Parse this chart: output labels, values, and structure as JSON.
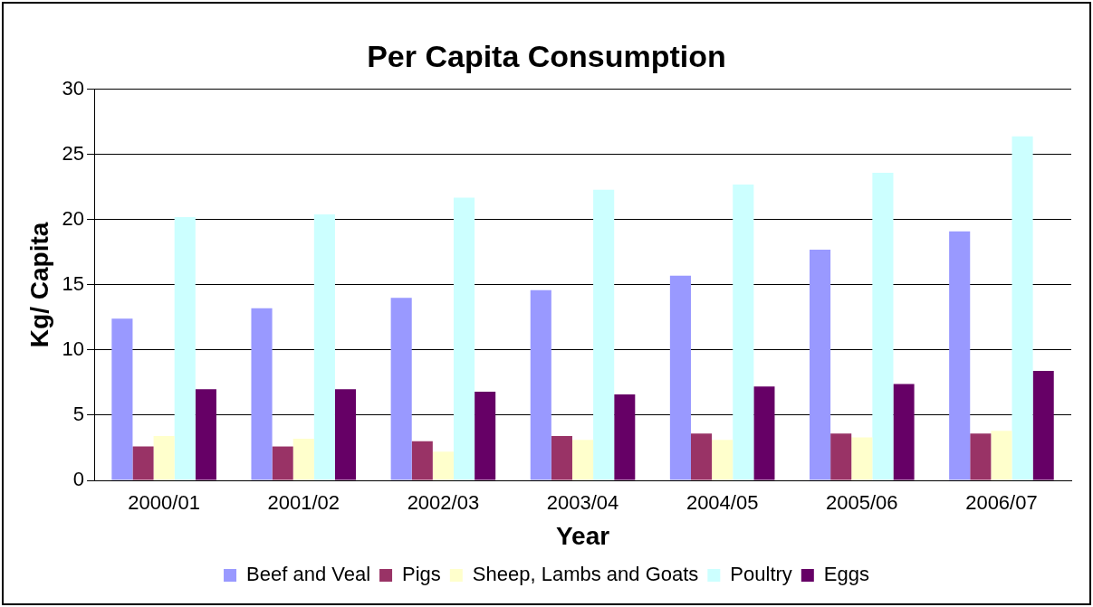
{
  "chart_data": {
    "type": "bar",
    "title": "Per Capita Consumption",
    "xlabel": "Year",
    "ylabel": "Kg/ Capita",
    "categories": [
      "2000/01",
      "2001/02",
      "2002/03",
      "2003/04",
      "2004/05",
      "2005/06",
      "2006/07"
    ],
    "series": [
      {
        "name": "Beef and Veal",
        "color": "#9999ff",
        "values": [
          12.4,
          13.2,
          14.0,
          14.6,
          15.7,
          17.7,
          19.1
        ]
      },
      {
        "name": "Pigs",
        "color": "#993366",
        "values": [
          2.6,
          2.6,
          3.0,
          3.4,
          3.6,
          3.6,
          3.6
        ]
      },
      {
        "name": "Sheep, Lambs and Goats",
        "color": "#ffffcc",
        "values": [
          3.4,
          3.2,
          2.2,
          3.1,
          3.1,
          3.3,
          3.8
        ]
      },
      {
        "name": "Poultry",
        "color": "#ccffff",
        "values": [
          20.2,
          20.4,
          21.7,
          22.3,
          22.7,
          23.6,
          26.4
        ]
      },
      {
        "name": "Eggs",
        "color": "#660066",
        "values": [
          7.0,
          7.0,
          6.8,
          6.6,
          7.2,
          7.4,
          8.4
        ]
      }
    ],
    "ylim": [
      0,
      30
    ],
    "yticks": [
      0,
      5,
      10,
      15,
      20,
      25,
      30
    ],
    "grid": "y",
    "legend": "bottom"
  }
}
